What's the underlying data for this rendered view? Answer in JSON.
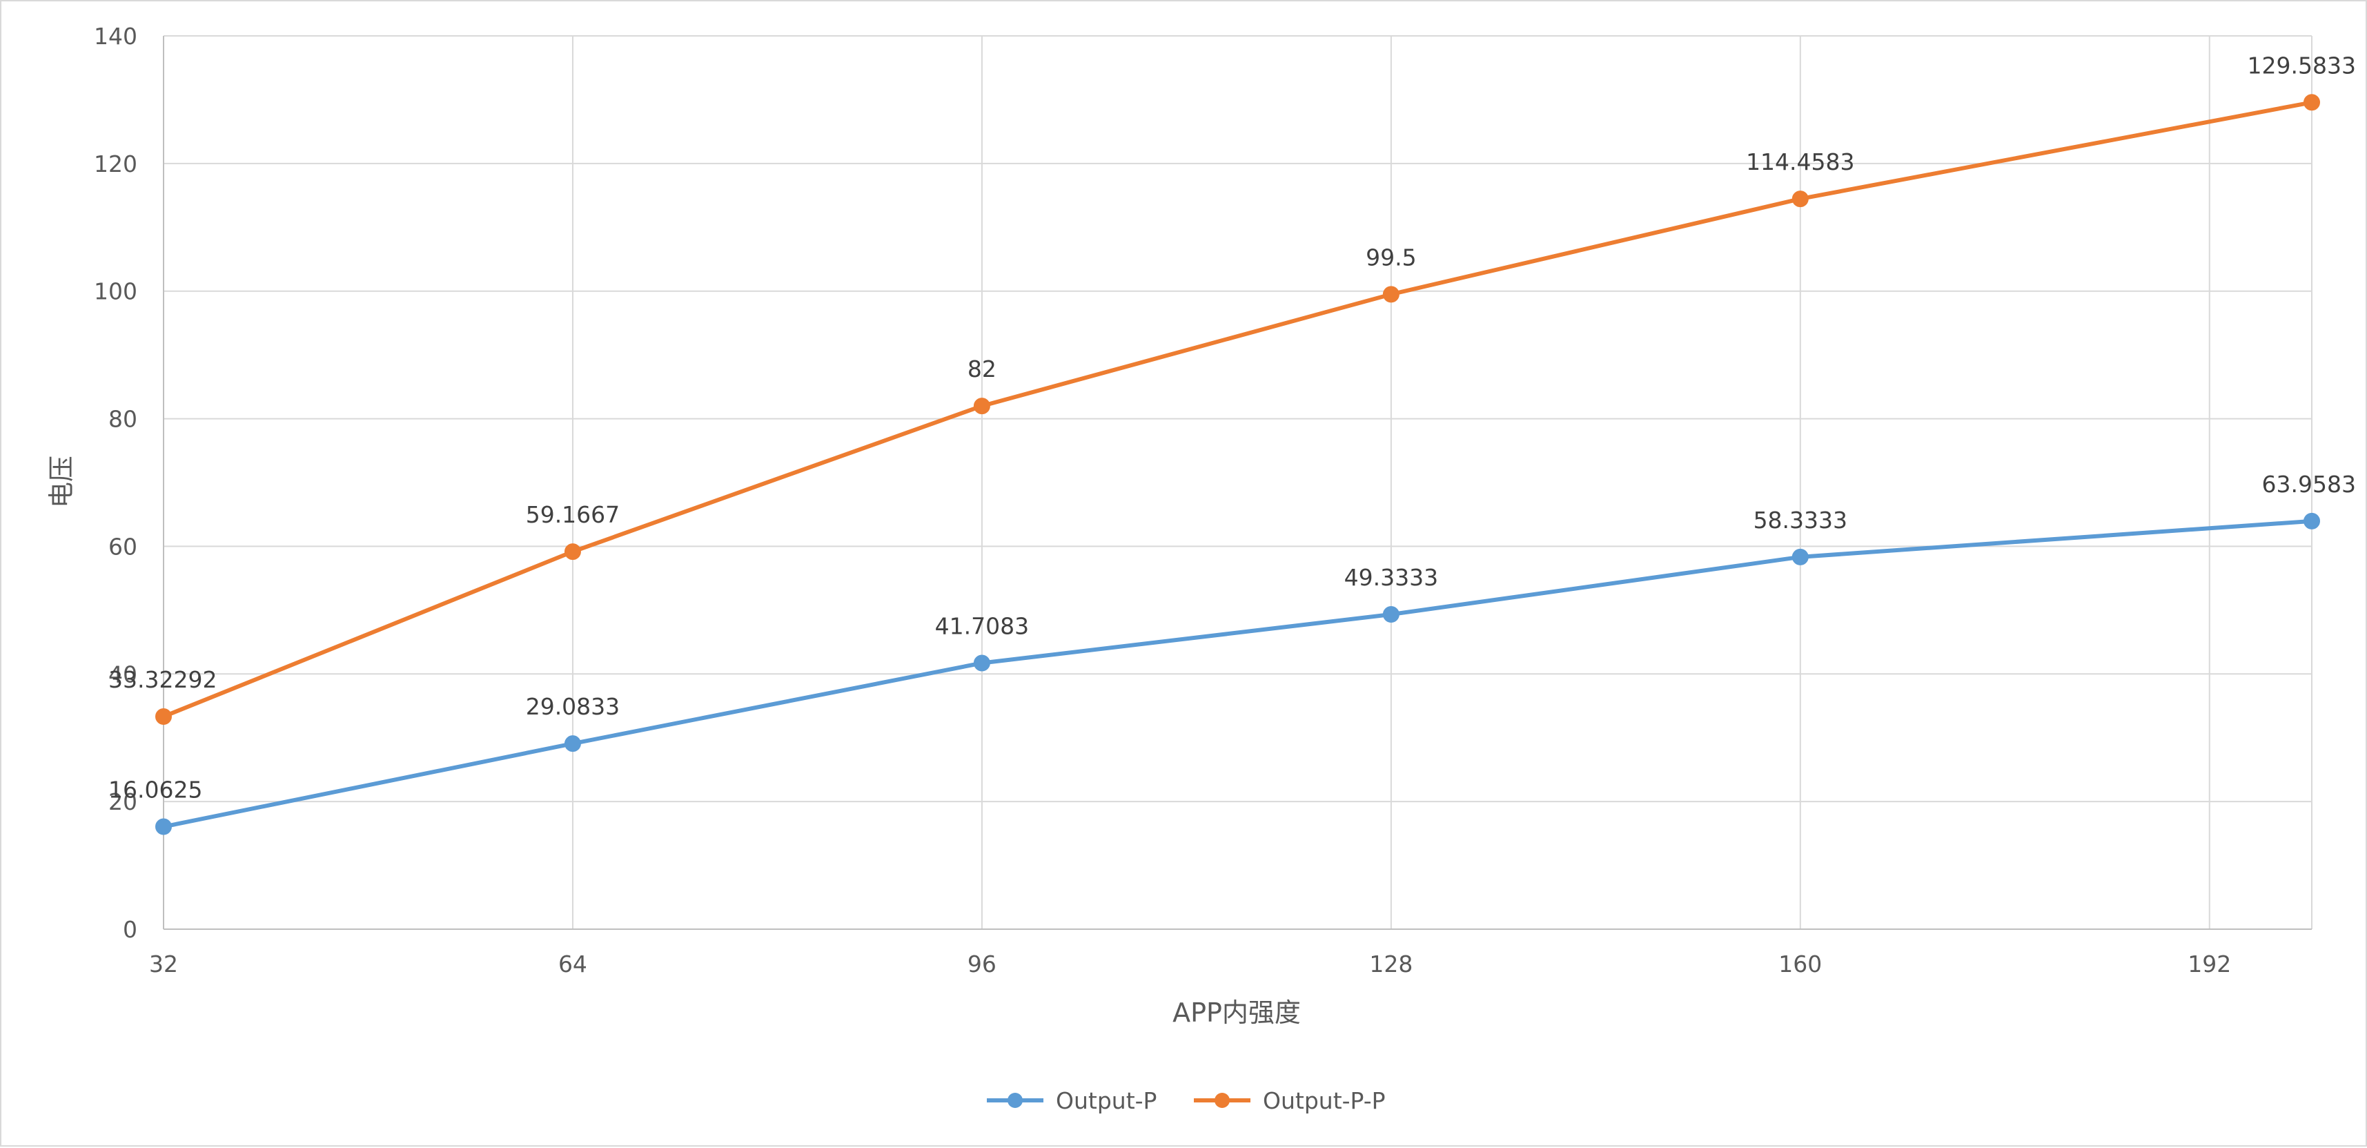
{
  "chart_data": {
    "type": "line",
    "x": [
      32,
      64,
      96,
      128,
      160,
      200
    ],
    "series": [
      {
        "name": "Output-P",
        "color": "#5b9bd5",
        "values": [
          16.0625,
          29.0833,
          41.7083,
          49.3333,
          58.3333,
          63.9583
        ],
        "labels": [
          "16.0625",
          "29.0833",
          "41.7083",
          "49.3333",
          "58.3333",
          "63.9583"
        ]
      },
      {
        "name": "Output-P-P",
        "color": "#ed7d31",
        "values": [
          33.32292,
          59.1667,
          82,
          99.5,
          114.4583,
          129.5833
        ],
        "labels": [
          "33.32292",
          "59.1667",
          "82",
          "99.5",
          "114.4583",
          "129.5833"
        ]
      }
    ],
    "xlabel": "APP内强度",
    "ylabel": "电压",
    "xlim": [
      32,
      200
    ],
    "ylim": [
      0,
      140
    ],
    "xticks": [
      32,
      64,
      96,
      128,
      160,
      192
    ],
    "xtick_labels": [
      "32",
      "64",
      "96",
      "128",
      "160",
      "192"
    ],
    "yticks": [
      0,
      20,
      40,
      60,
      80,
      100,
      120,
      140
    ],
    "ytick_labels": [
      "0",
      "20",
      "40",
      "60",
      "80",
      "100",
      "120",
      "140"
    ],
    "grid": true,
    "legend": "bottom-center"
  }
}
